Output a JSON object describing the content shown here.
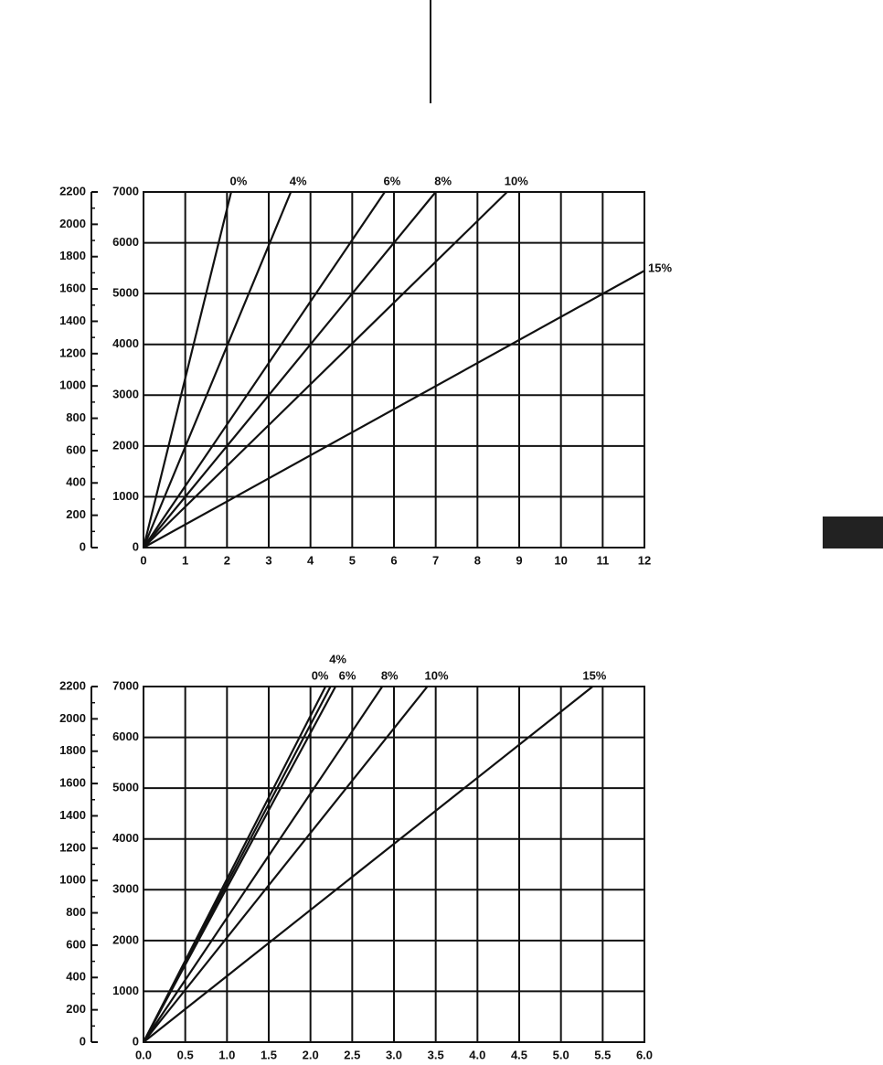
{
  "chart_data": [
    {
      "type": "line",
      "xlim": [
        0,
        12
      ],
      "xticks": [
        0,
        1,
        2,
        3,
        4,
        5,
        6,
        7,
        8,
        9,
        10,
        11,
        12
      ],
      "ylim": [
        0,
        7000
      ],
      "yticks": [
        0,
        1000,
        2000,
        3000,
        4000,
        5000,
        6000,
        7000
      ],
      "y2lim": [
        0,
        2200
      ],
      "y2ticks": [
        0,
        200,
        400,
        600,
        800,
        1000,
        1200,
        1400,
        1600,
        1800,
        2000,
        2200
      ],
      "y2minorticks": [
        100,
        300,
        500,
        700,
        900,
        1100,
        1300,
        1500,
        1700,
        1900,
        2100
      ],
      "grid": true,
      "series": [
        {
          "name": "0%",
          "color": "#111111",
          "x": [
            0,
            2.1
          ],
          "values": [
            0,
            7000
          ]
        },
        {
          "name": "4%",
          "color": "#111111",
          "x": [
            0,
            3.53
          ],
          "values": [
            0,
            7000
          ]
        },
        {
          "name": "6%",
          "color": "#111111",
          "x": [
            0,
            5.78
          ],
          "values": [
            0,
            7000
          ]
        },
        {
          "name": "8%",
          "color": "#111111",
          "x": [
            0,
            7.0
          ],
          "values": [
            0,
            7000
          ]
        },
        {
          "name": "10%",
          "color": "#111111",
          "x": [
            0,
            8.71
          ],
          "values": [
            0,
            7000
          ]
        },
        {
          "name": "15%",
          "color": "#111111",
          "x": [
            0,
            12
          ],
          "values": [
            0,
            5450
          ]
        }
      ]
    },
    {
      "type": "line",
      "xlim": [
        0,
        6
      ],
      "xticks": [
        {
          "value": 0,
          "label": "0.0"
        },
        0.5,
        {
          "value": 1,
          "label": "1.0"
        },
        1.5,
        {
          "value": 2,
          "label": "2.0"
        },
        2.5,
        {
          "value": 3,
          "label": "3.0"
        },
        3.5,
        {
          "value": 4,
          "label": "4.0"
        },
        4.5,
        {
          "value": 5,
          "label": "5.0"
        },
        5.5,
        {
          "value": 6,
          "label": "6.0"
        }
      ],
      "ylim": [
        0,
        7000
      ],
      "yticks": [
        0,
        1000,
        2000,
        3000,
        4000,
        5000,
        6000,
        7000
      ],
      "y2lim": [
        0,
        2200
      ],
      "y2ticks": [
        0,
        200,
        400,
        600,
        800,
        1000,
        1200,
        1400,
        1600,
        1800,
        2000,
        2200
      ],
      "y2minorticks": [
        100,
        300,
        500,
        700,
        900,
        1100,
        1300,
        1500,
        1700,
        1900,
        2100
      ],
      "grid": true,
      "series": [
        {
          "name": "0%",
          "color": "#111111",
          "x": [
            0,
            2.18
          ],
          "values": [
            0,
            7000
          ]
        },
        {
          "name": "4%",
          "color": "#111111",
          "x": [
            0,
            2.24
          ],
          "values": [
            0,
            7000
          ]
        },
        {
          "name": "6%",
          "color": "#111111",
          "x": [
            0,
            2.3
          ],
          "values": [
            0,
            7000
          ]
        },
        {
          "name": "8%",
          "color": "#111111",
          "x": [
            0,
            2.86
          ],
          "values": [
            0,
            7000
          ]
        },
        {
          "name": "10%",
          "color": "#111111",
          "x": [
            0,
            3.4
          ],
          "values": [
            0,
            7000
          ]
        },
        {
          "name": "15%",
          "color": "#111111",
          "x": [
            0,
            5.38
          ],
          "values": [
            0,
            7000
          ]
        }
      ]
    }
  ]
}
